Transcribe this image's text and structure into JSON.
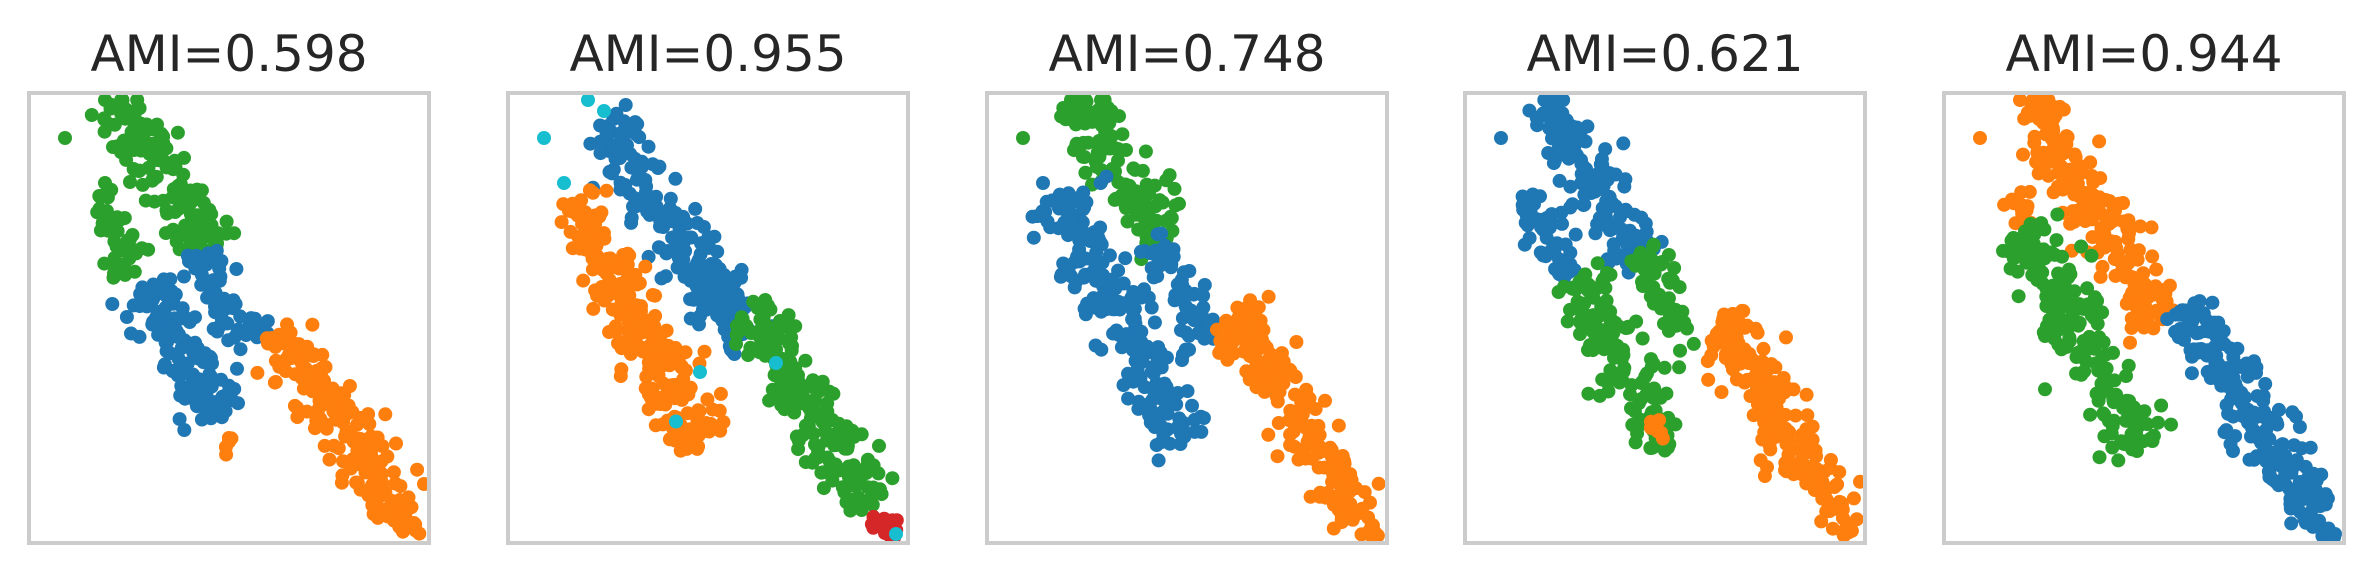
{
  "colors": {
    "blue": "#1f77b4",
    "orange": "#ff7f0e",
    "green": "#2ca02c",
    "red": "#d62728",
    "cyan": "#17becf",
    "frame": "#cccccc",
    "text": "#262626"
  },
  "chart_data": [
    {
      "type": "scatter",
      "title": "AMI=0.598",
      "xlabel": "",
      "ylabel": "",
      "xticks": [],
      "yticks": [],
      "grid": false,
      "clusters": [
        {
          "color": "green",
          "segments": [
            {
              "from": [
                0.22,
                0.01
              ],
              "to": [
                0.45,
                0.36
              ],
              "width": 0.035,
              "count": 150
            },
            {
              "from": [
                0.17,
                0.23
              ],
              "to": [
                0.26,
                0.4
              ],
              "width": 0.025,
              "count": 45
            }
          ],
          "outliers": [
            [
              0.09,
              0.1
            ],
            [
              0.19,
              0.2
            ],
            [
              0.19,
              0.01
            ],
            [
              0.21,
              0.12
            ]
          ]
        },
        {
          "color": "blue",
          "segments": [
            {
              "from": [
                0.29,
                0.42
              ],
              "to": [
                0.49,
                0.72
              ],
              "width": 0.035,
              "count": 150
            },
            {
              "from": [
                0.42,
                0.36
              ],
              "to": [
                0.57,
                0.56
              ],
              "width": 0.025,
              "count": 55
            }
          ],
          "outliers": []
        },
        {
          "color": "orange",
          "segments": [
            {
              "from": [
                0.63,
                0.52
              ],
              "to": [
                0.93,
                0.94
              ],
              "width": 0.035,
              "count": 190
            },
            {
              "from": [
                0.93,
                0.95
              ],
              "to": [
                0.98,
                0.98
              ],
              "width": 0.012,
              "count": 10
            },
            {
              "from": [
                0.48,
                0.75
              ],
              "to": [
                0.52,
                0.79
              ],
              "width": 0.012,
              "count": 5
            }
          ],
          "outliers": []
        }
      ]
    },
    {
      "type": "scatter",
      "title": "AMI=0.955",
      "xlabel": "",
      "ylabel": "",
      "xticks": [],
      "yticks": [],
      "grid": false,
      "clusters": [
        {
          "color": "blue",
          "segments": [
            {
              "from": [
                0.24,
                0.06
              ],
              "to": [
                0.6,
                0.56
              ],
              "width": 0.035,
              "count": 220
            }
          ],
          "outliers": []
        },
        {
          "color": "orange",
          "segments": [
            {
              "from": [
                0.17,
                0.23
              ],
              "to": [
                0.48,
                0.79
              ],
              "width": 0.04,
              "count": 230
            }
          ],
          "outliers": []
        },
        {
          "color": "green",
          "segments": [
            {
              "from": [
                0.6,
                0.47
              ],
              "to": [
                0.91,
                0.92
              ],
              "width": 0.035,
              "count": 200
            }
          ],
          "outliers": []
        },
        {
          "color": "red",
          "segments": [
            {
              "from": [
                0.91,
                0.94
              ],
              "to": [
                0.98,
                0.99
              ],
              "width": 0.015,
              "count": 14
            }
          ],
          "outliers": []
        },
        {
          "color": "cyan",
          "segments": [],
          "outliers": [
            [
              0.09,
              0.1
            ],
            [
              0.14,
              0.2
            ],
            [
              0.2,
              0.01
            ],
            [
              0.24,
              0.04
            ],
            [
              0.97,
              0.98
            ],
            [
              0.48,
              0.62
            ],
            [
              0.42,
              0.73
            ],
            [
              0.67,
              0.6
            ]
          ]
        }
      ]
    },
    {
      "type": "scatter",
      "title": "AMI=0.748",
      "xlabel": "",
      "ylabel": "",
      "xticks": [],
      "yticks": [],
      "grid": false,
      "clusters": [
        {
          "color": "green",
          "segments": [
            {
              "from": [
                0.22,
                0.01
              ],
              "to": [
                0.45,
                0.33
              ],
              "width": 0.035,
              "count": 140
            }
          ],
          "outliers": [
            [
              0.09,
              0.1
            ],
            [
              0.21,
              0.01
            ]
          ]
        },
        {
          "color": "blue",
          "segments": [
            {
              "from": [
                0.17,
                0.23
              ],
              "to": [
                0.5,
                0.78
              ],
              "width": 0.04,
              "count": 210
            },
            {
              "from": [
                0.4,
                0.33
              ],
              "to": [
                0.57,
                0.56
              ],
              "width": 0.025,
              "count": 55
            }
          ],
          "outliers": [
            [
              0.14,
              0.2
            ]
          ]
        },
        {
          "color": "orange",
          "segments": [
            {
              "from": [
                0.62,
                0.48
              ],
              "to": [
                0.93,
                0.94
              ],
              "width": 0.035,
              "count": 200
            },
            {
              "from": [
                0.93,
                0.95
              ],
              "to": [
                0.98,
                0.98
              ],
              "width": 0.012,
              "count": 10
            },
            {
              "from": [
                0.56,
                0.56
              ],
              "to": [
                0.61,
                0.58
              ],
              "width": 0.012,
              "count": 5
            }
          ],
          "outliers": []
        }
      ]
    },
    {
      "type": "scatter",
      "title": "AMI=0.621",
      "xlabel": "",
      "ylabel": "",
      "xticks": [],
      "yticks": [],
      "grid": false,
      "clusters": [
        {
          "color": "blue",
          "segments": [
            {
              "from": [
                0.2,
                0.01
              ],
              "to": [
                0.45,
                0.38
              ],
              "width": 0.035,
              "count": 150
            },
            {
              "from": [
                0.15,
                0.22
              ],
              "to": [
                0.27,
                0.4
              ],
              "width": 0.025,
              "count": 50
            }
          ],
          "outliers": [
            [
              0.09,
              0.1
            ]
          ]
        },
        {
          "color": "green",
          "segments": [
            {
              "from": [
                0.28,
                0.4
              ],
              "to": [
                0.5,
                0.78
              ],
              "width": 0.035,
              "count": 150
            },
            {
              "from": [
                0.43,
                0.36
              ],
              "to": [
                0.57,
                0.56
              ],
              "width": 0.025,
              "count": 55
            },
            {
              "from": [
                0.5,
                0.78
              ],
              "to": [
                0.52,
                0.8
              ],
              "width": 0.01,
              "count": 3
            }
          ],
          "outliers": []
        },
        {
          "color": "orange",
          "segments": [
            {
              "from": [
                0.63,
                0.5
              ],
              "to": [
                0.93,
                0.94
              ],
              "width": 0.035,
              "count": 200
            },
            {
              "from": [
                0.93,
                0.95
              ],
              "to": [
                0.98,
                0.98
              ],
              "width": 0.012,
              "count": 10
            },
            {
              "from": [
                0.46,
                0.72
              ],
              "to": [
                0.51,
                0.79
              ],
              "width": 0.012,
              "count": 7
            }
          ],
          "outliers": []
        }
      ]
    },
    {
      "type": "scatter",
      "title": "AMI=0.944",
      "xlabel": "",
      "ylabel": "",
      "xticks": [],
      "yticks": [],
      "grid": false,
      "clusters": [
        {
          "color": "orange",
          "segments": [
            {
              "from": [
                0.22,
                0.01
              ],
              "to": [
                0.53,
                0.52
              ],
              "width": 0.035,
              "count": 200
            },
            {
              "from": [
                0.17,
                0.23
              ],
              "to": [
                0.22,
                0.3
              ],
              "width": 0.02,
              "count": 15
            }
          ],
          "outliers": [
            [
              0.09,
              0.1
            ],
            [
              0.19,
              0.01
            ]
          ]
        },
        {
          "color": "green",
          "segments": [
            {
              "from": [
                0.2,
                0.3
              ],
              "to": [
                0.5,
                0.79
              ],
              "width": 0.04,
              "count": 200
            }
          ],
          "outliers": []
        },
        {
          "color": "blue",
          "segments": [
            {
              "from": [
                0.6,
                0.47
              ],
              "to": [
                0.93,
                0.94
              ],
              "width": 0.035,
              "count": 200
            },
            {
              "from": [
                0.93,
                0.95
              ],
              "to": [
                0.98,
                0.99
              ],
              "width": 0.012,
              "count": 10
            }
          ],
          "outliers": []
        }
      ]
    }
  ]
}
